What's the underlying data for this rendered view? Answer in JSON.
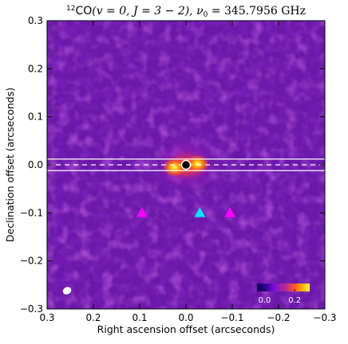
{
  "chart_data": {
    "type": "heatmap",
    "title": {
      "species": "CO",
      "isotope_mass": "12",
      "transition": "(v = 0,  J = 3 − 2), ν",
      "nu_subscript": "0",
      "frequency": " = 345.7956 GHz"
    },
    "xlabel": "Right ascension offset (arcseconds)",
    "ylabel": "Declination offset (arcseconds)",
    "xlim": [
      0.3,
      -0.3
    ],
    "ylim": [
      -0.3,
      0.3
    ],
    "x_ticks": [
      0.3,
      0.2,
      0.1,
      0.0,
      -0.1,
      -0.2,
      -0.3
    ],
    "x_tick_labels": [
      "0.3",
      "0.2",
      "0.1",
      "0.0",
      "−0.1",
      "−0.2",
      "−0.3"
    ],
    "y_ticks": [
      0.3,
      0.2,
      0.1,
      0.0,
      -0.1,
      -0.2,
      -0.3
    ],
    "y_tick_labels": [
      "0.3",
      "0.2",
      "0.1",
      "0.0",
      "−0.1",
      "−0.2",
      "−0.3"
    ],
    "colormap": "gnuplot2-like",
    "background_color": "#6a18a8",
    "emission_peaks": [
      {
        "x": 0.025,
        "y": -0.005,
        "intensity": 0.28
      },
      {
        "x": -0.025,
        "y": 0.002,
        "intensity": 0.27
      },
      {
        "x": 0.0,
        "y": 0.0,
        "intensity": 0.12
      }
    ],
    "central_marker": {
      "x": 0.0,
      "y": 0.0,
      "shape": "circle",
      "fill": "#000000",
      "edge": "#ffffff"
    },
    "markers": [
      {
        "x": 0.095,
        "y": -0.1,
        "shape": "triangle",
        "color": "#ff00ff"
      },
      {
        "x": -0.03,
        "y": -0.1,
        "shape": "triangle",
        "color": "#00e8ff"
      },
      {
        "x": -0.095,
        "y": -0.1,
        "shape": "triangle",
        "color": "#ff00ff"
      }
    ],
    "slit_lines": [
      {
        "y": 0.012,
        "style": "solid",
        "color": "#ffffff"
      },
      {
        "y": 0.0,
        "style": "dashed",
        "color": "#ffffff"
      },
      {
        "y": -0.012,
        "style": "solid",
        "color": "#ffffff"
      }
    ],
    "beam": {
      "x": 0.257,
      "y": -0.262,
      "shape": "ellipse",
      "color": "#ffffff"
    },
    "colorbar": {
      "range": [
        -0.05,
        0.3
      ],
      "tick_values": [
        0.0,
        0.2
      ],
      "tick_labels": [
        "0.0",
        "0.2"
      ],
      "colors": [
        "#000040",
        "#3a00a0",
        "#7a10d8",
        "#c02890",
        "#ff5a20",
        "#ffb000",
        "#ffff40"
      ]
    }
  }
}
